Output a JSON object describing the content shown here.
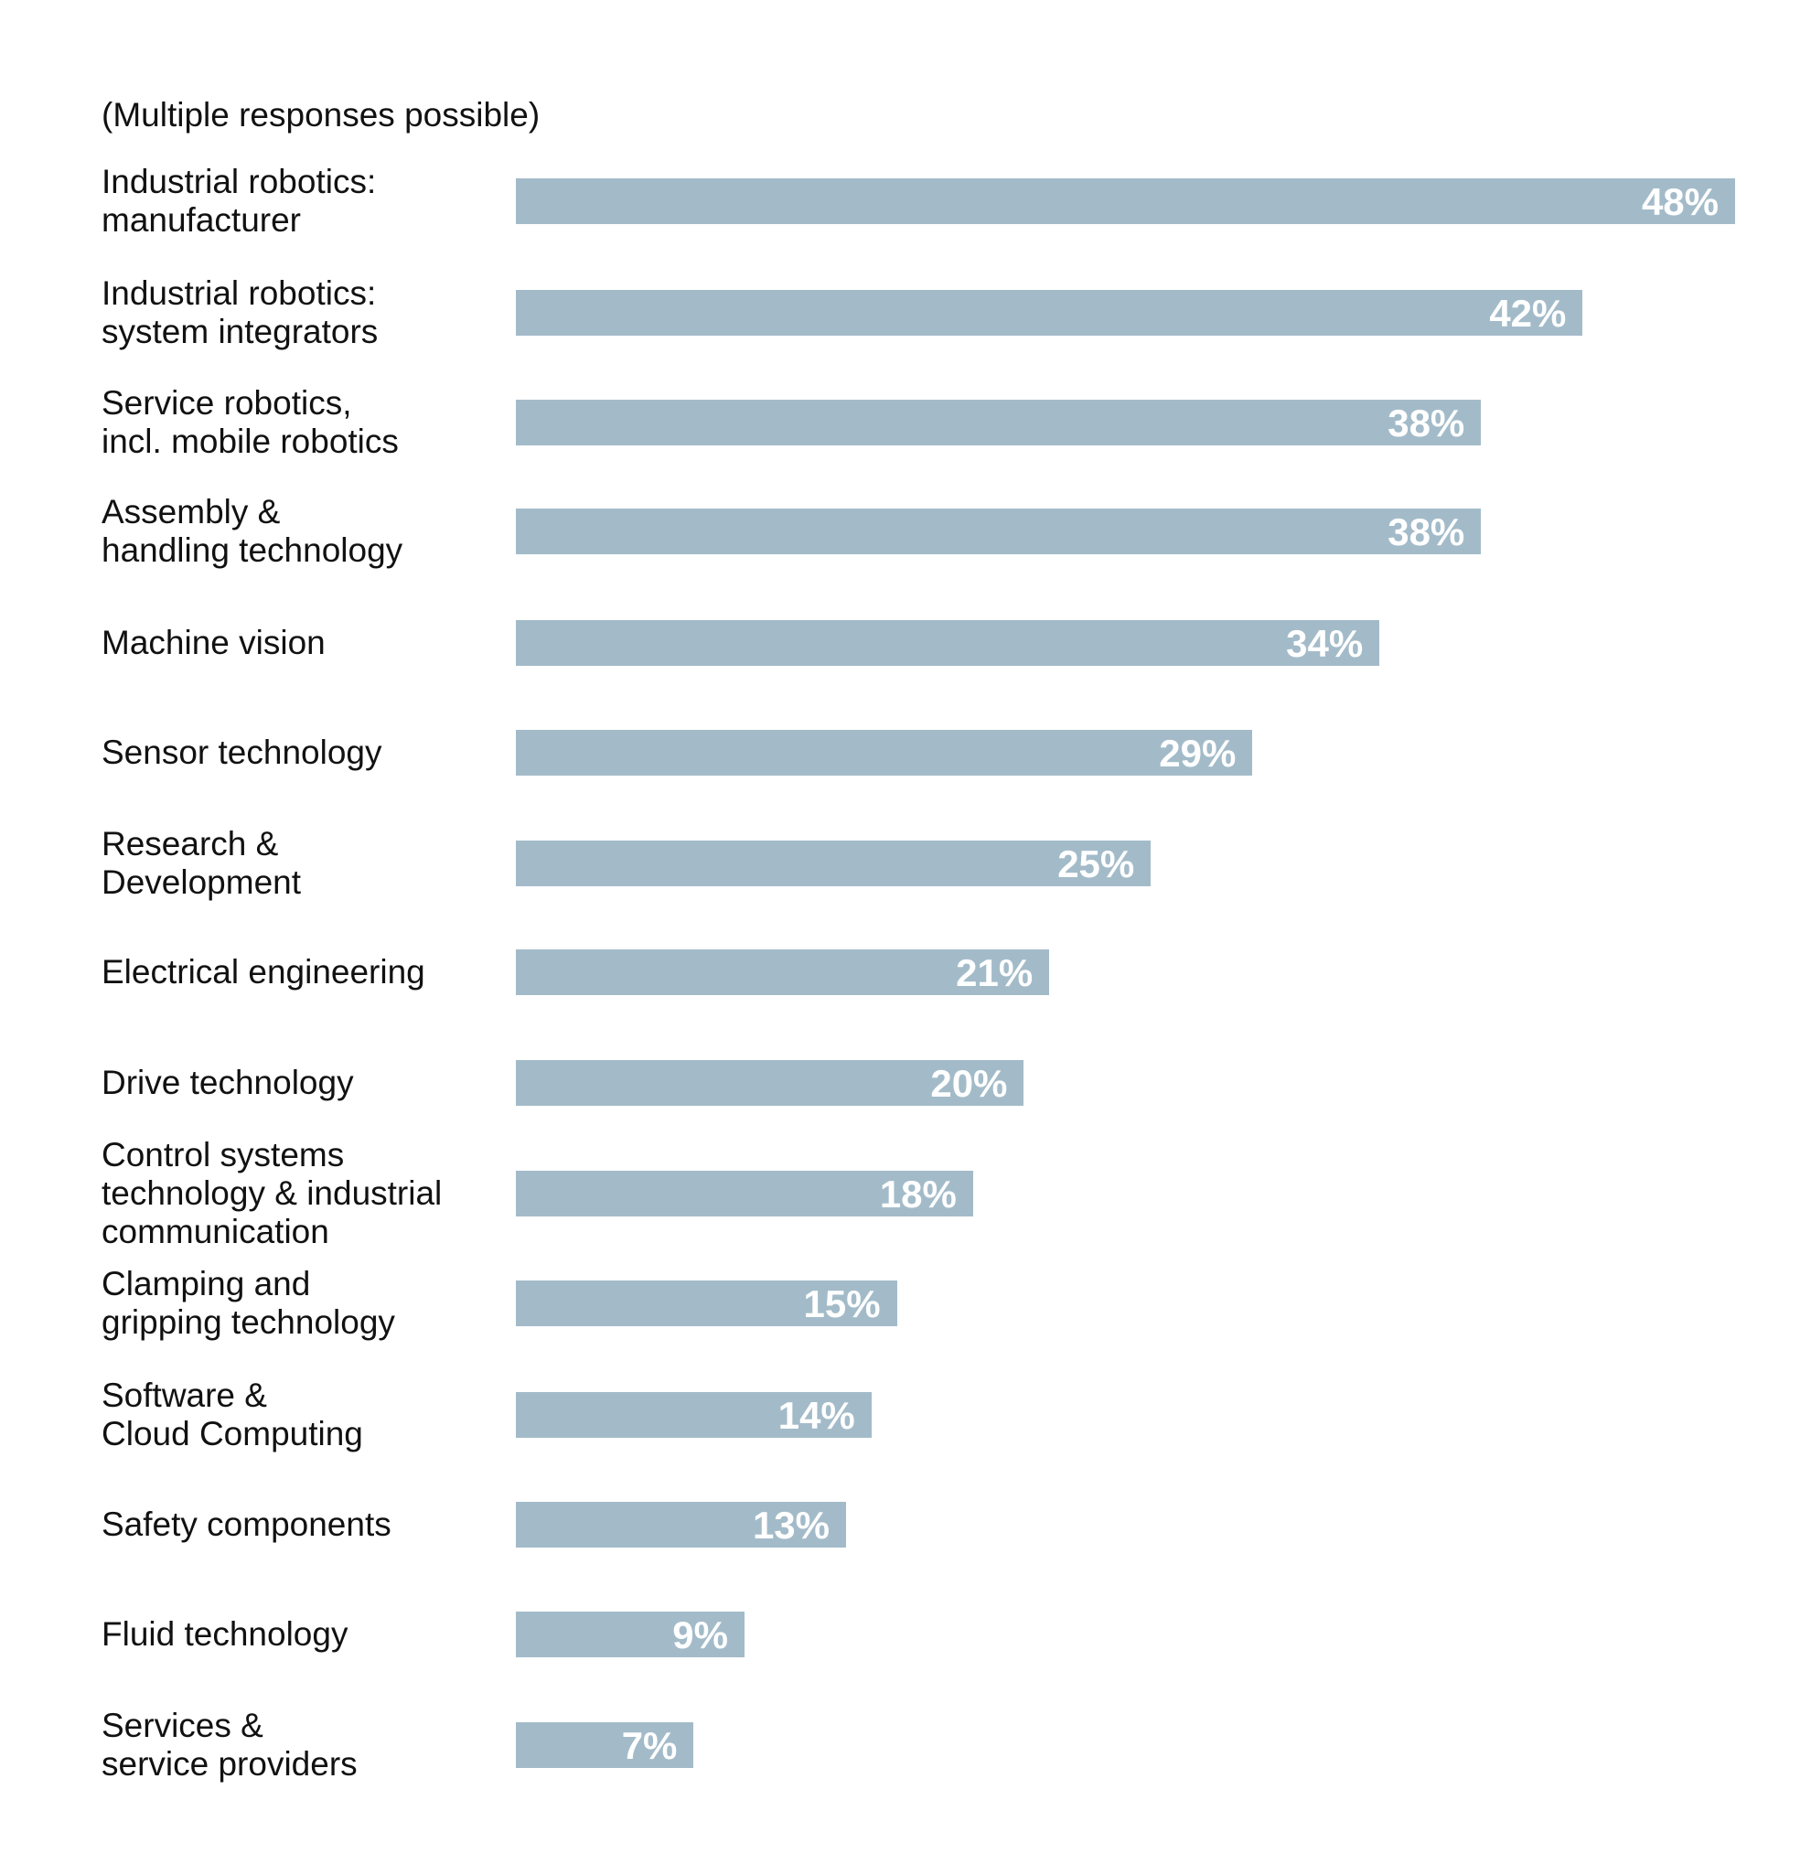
{
  "chart_data": {
    "type": "bar",
    "orientation": "horizontal",
    "subtitle": "(Multiple responses possible)",
    "categories": [
      [
        "Industrial robotics:",
        "manufacturer"
      ],
      [
        "Industrial robotics:",
        "system integrators"
      ],
      [
        "Service robotics,",
        "incl. mobile robotics"
      ],
      [
        "Assembly &",
        "handling technology"
      ],
      [
        "Machine vision"
      ],
      [
        "Sensor technology"
      ],
      [
        "Research &",
        "Development"
      ],
      [
        "Electrical engineering"
      ],
      [
        "Drive technology"
      ],
      [
        "Control systems",
        "technology & industrial",
        "communication"
      ],
      [
        "Clamping and",
        "gripping technology"
      ],
      [
        "Software &",
        "Cloud Computing"
      ],
      [
        "Safety components"
      ],
      [
        "Fluid technology"
      ],
      [
        "Services &",
        "service providers"
      ]
    ],
    "values": [
      48,
      42,
      38,
      38,
      34,
      29,
      25,
      21,
      20,
      18,
      15,
      14,
      13,
      9,
      7
    ],
    "value_labels": [
      "48%",
      "42%",
      "38%",
      "38%",
      "34%",
      "29%",
      "25%",
      "21%",
      "20%",
      "18%",
      "15%",
      "14%",
      "13%",
      "9%",
      "7%"
    ],
    "unit": "%",
    "xlim": [
      0,
      48
    ],
    "grid": false,
    "bar_color": "#a3bbc9",
    "value_label_color": "#ffffff"
  }
}
